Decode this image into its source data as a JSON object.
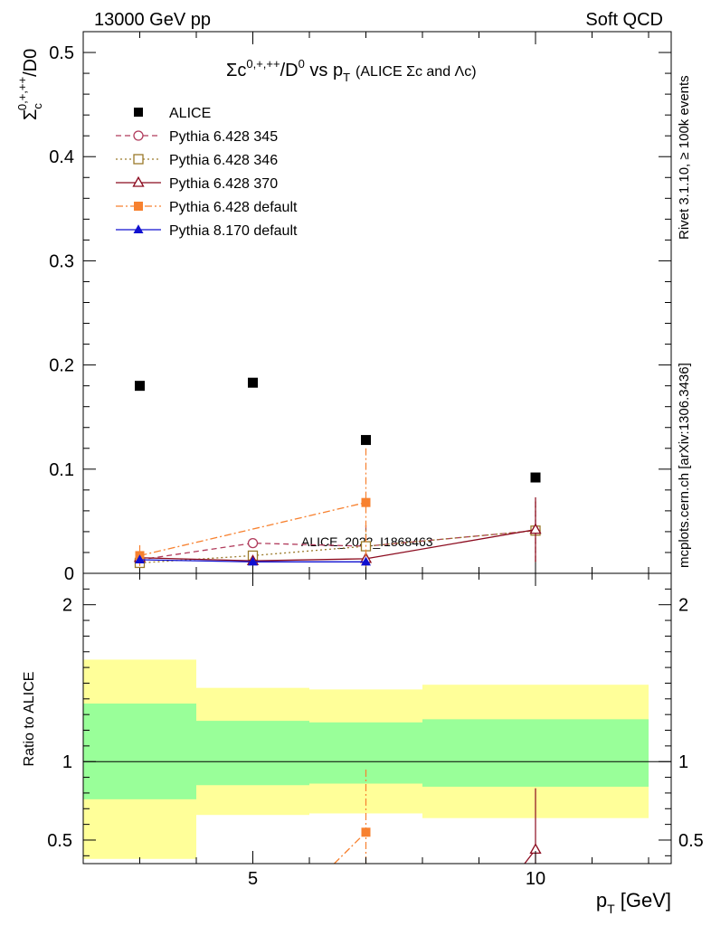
{
  "header": {
    "left": "13000 GeV pp",
    "right": "Soft QCD"
  },
  "side": {
    "rivet": "Rivet 3.1.10, ≥ 100k events",
    "mcplots": "mcplots.cern.ch [arXiv:1306.3436]"
  },
  "chart_data": [
    {
      "type": "scatter",
      "panel": "main",
      "title": "Σc^{0,+,++}/D^{0} vs p_T (ALICE Σc and Λc)",
      "title_main": "Σc",
      "title_sup1": "0,+,++",
      "title_mid": "/D",
      "title_sup2": "0",
      "title_vs": " vs p",
      "title_sub": "T",
      "title_small": "(ALICE Σc and Λc)",
      "ylabel": "Σc^{0,+,++}/D0",
      "ylabel_main": "Σ",
      "ylabel_sub": "c",
      "ylabel_sup": "0,+,++",
      "ylabel_tail": "/D0",
      "xlim": [
        2.0,
        12.4
      ],
      "ylim": [
        0,
        0.52
      ],
      "y_ticks": [
        0,
        0.1,
        0.2,
        0.3,
        0.4,
        0.5
      ],
      "y_tick_labels": [
        "0",
        "0.1",
        "0.2",
        "0.3",
        "0.4",
        "0.5"
      ],
      "watermark": "ALICE_2022_I1868463",
      "legend_position": "top-left",
      "series": [
        {
          "name": "ALICE",
          "color": "#000000",
          "marker": "square-filled",
          "line": "none",
          "x": [
            3,
            5,
            7,
            10
          ],
          "y": [
            0.18,
            0.183,
            0.128,
            0.092
          ],
          "err": [
            0,
            0,
            0,
            0
          ]
        },
        {
          "name": "Pythia 6.428 345",
          "color": "#b03a5b",
          "marker": "circle-open",
          "line": "dashed",
          "x": [
            3,
            5,
            7,
            10
          ],
          "y": [
            0.013,
            0.029,
            0.026,
            0.041
          ],
          "err": [
            0.004,
            0.004,
            0.02,
            0.03
          ]
        },
        {
          "name": "Pythia 6.428 346",
          "color": "#9a7a2a",
          "marker": "square-open",
          "line": "dotted",
          "x": [
            3,
            5,
            7,
            10
          ],
          "y": [
            0.01,
            0.017,
            0.026,
            0.041
          ],
          "err": [
            0.004,
            0.004,
            0.02,
            0.03
          ]
        },
        {
          "name": "Pythia 6.428 370",
          "color": "#8b0a1e",
          "marker": "triangle-open",
          "line": "solid",
          "x": [
            3,
            5,
            7,
            10
          ],
          "y": [
            0.015,
            0.012,
            0.014,
            0.042
          ],
          "err": [
            0.004,
            0.004,
            0.004,
            0.031
          ]
        },
        {
          "name": "Pythia 6.428 default",
          "color": "#f7812f",
          "marker": "square-filled",
          "line": "dashdot",
          "x": [
            3,
            7
          ],
          "y": [
            0.017,
            0.068
          ],
          "err": [
            0.01,
            0.052
          ]
        },
        {
          "name": "Pythia 8.170 default",
          "color": "#1010d0",
          "marker": "triangle-filled",
          "line": "solid",
          "x": [
            3,
            5,
            7
          ],
          "y": [
            0.013,
            0.011,
            0.011
          ],
          "err": [
            0.003,
            0.003,
            0.003
          ]
        }
      ]
    },
    {
      "type": "scatter",
      "panel": "ratio",
      "ylabel": "Ratio to ALICE",
      "xlabel": "p_T [GeV]",
      "xlabel_main": "p",
      "xlabel_sub": "T",
      "xlabel_unit": " [GeV]",
      "xlim": [
        2.0,
        12.4
      ],
      "ylim": [
        0.35,
        2.2
      ],
      "x_ticks": [
        5,
        10
      ],
      "x_tick_labels": [
        "5",
        "10"
      ],
      "y_ticks": [
        0.5,
        1,
        2
      ],
      "y_tick_labels": [
        "0.5",
        "1",
        "2"
      ],
      "bands": [
        {
          "x0": 2,
          "x1": 4,
          "outer": [
            0.38,
            1.65
          ],
          "inner": [
            0.76,
            1.37
          ]
        },
        {
          "x0": 4,
          "x1": 6,
          "outer": [
            0.66,
            1.47
          ],
          "inner": [
            0.85,
            1.26
          ]
        },
        {
          "x0": 6,
          "x1": 8,
          "outer": [
            0.67,
            1.46
          ],
          "inner": [
            0.86,
            1.25
          ]
        },
        {
          "x0": 8,
          "x1": 12,
          "outer": [
            0.64,
            1.49
          ],
          "inner": [
            0.84,
            1.27
          ]
        }
      ],
      "band_colors": {
        "outer": "#ffff99",
        "inner": "#99ff99"
      },
      "series": [
        {
          "name": "Pythia 6.428 default",
          "color": "#f7812f",
          "marker": "square-filled",
          "line": "dashdot",
          "x": [
            7
          ],
          "y": [
            0.55
          ],
          "err": [
            0.4
          ],
          "line_from": [
            6.3,
            0.3
          ]
        },
        {
          "name": "Pythia 6.428 370",
          "color": "#8b0a1e",
          "marker": "triangle-open",
          "line": "solid",
          "x": [
            10
          ],
          "y": [
            0.44
          ],
          "err": [
            0.39
          ],
          "line_from": [
            9.7,
            0.3
          ]
        }
      ]
    }
  ]
}
